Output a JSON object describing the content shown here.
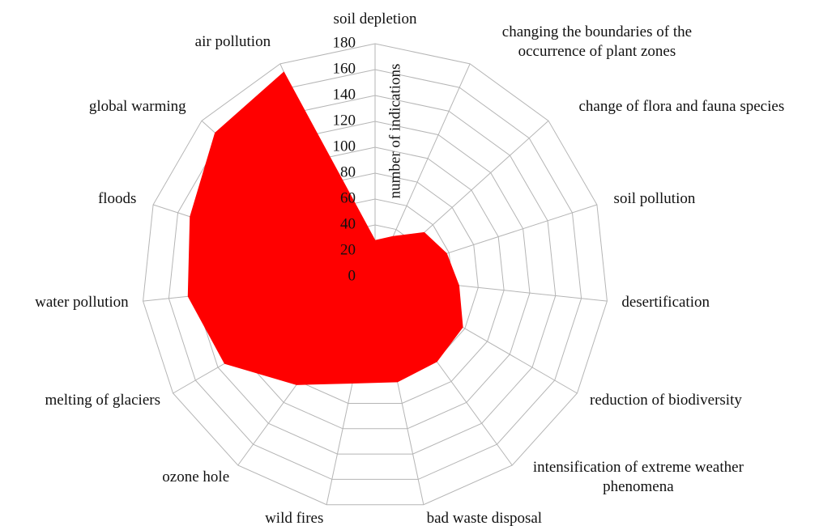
{
  "chart_data": {
    "type": "radar",
    "axis_label": "number of indications",
    "categories": [
      "soil depletion",
      "changing the boundaries of the occurrence of plant zones",
      "change of flora and fauna species",
      "soil pollution",
      "desertification",
      "reduction of biodiversity",
      "intensification of extreme weather phenomena",
      "bad waste disposal",
      "wild fires",
      "ozone hole",
      "melting of glaciers",
      "water pollution",
      "floods",
      "global warming",
      "air pollution"
    ],
    "values": [
      28,
      34,
      51,
      58,
      65,
      78,
      81,
      83,
      84,
      103,
      134,
      145,
      150,
      166,
      173
    ],
    "color": "#ff0000",
    "ylim": [
      0,
      180
    ],
    "yticks": [
      0,
      20,
      40,
      60,
      80,
      100,
      120,
      140,
      160,
      180
    ],
    "grid": true
  }
}
